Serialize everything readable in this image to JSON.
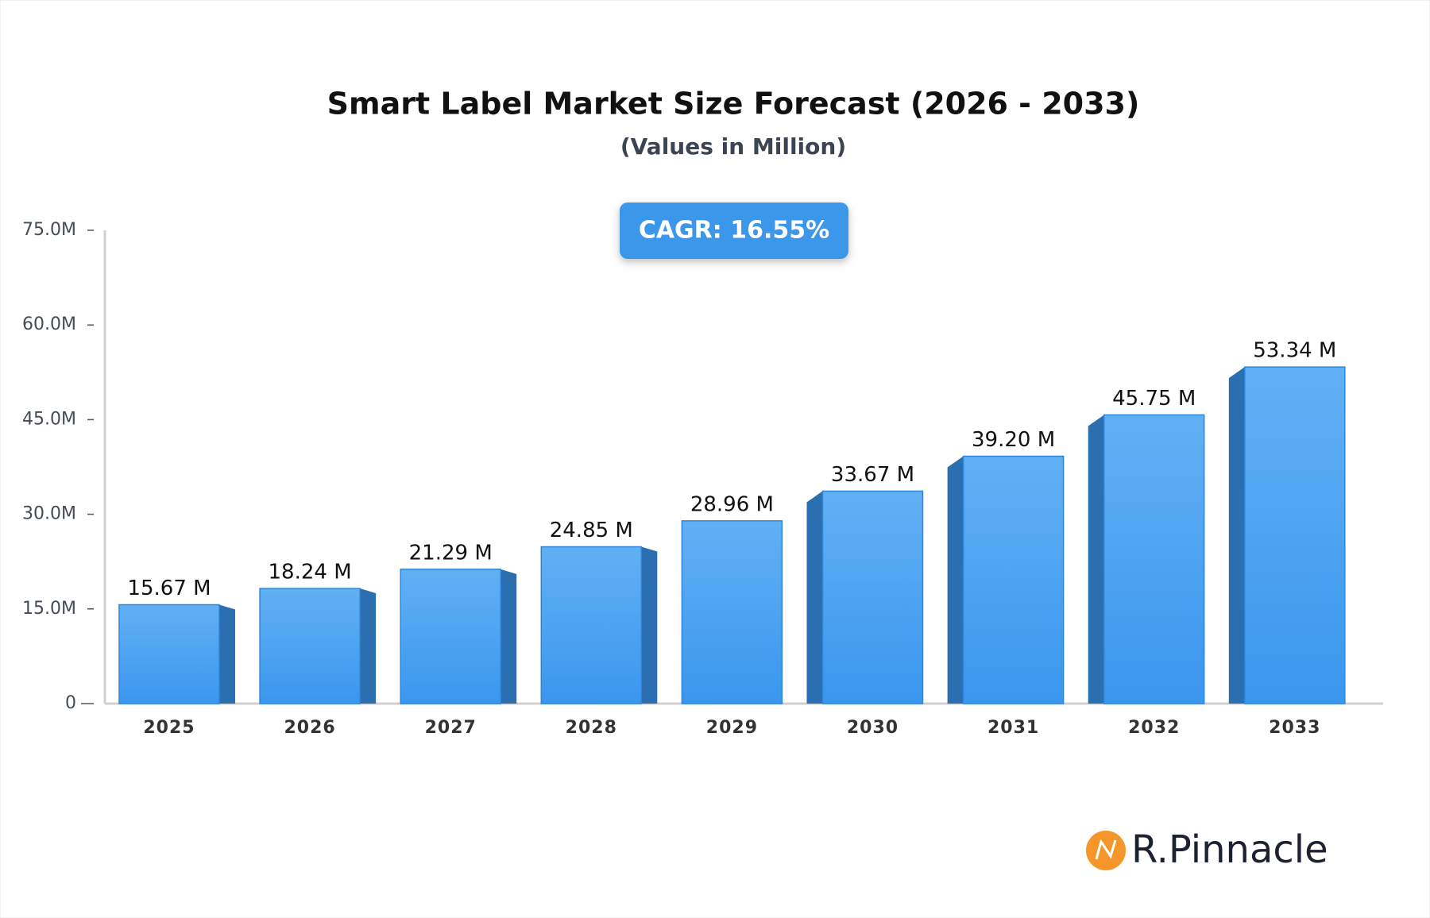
{
  "chart_data": {
    "type": "bar",
    "title": "Smart Label Market Size Forecast (2026 - 2033)",
    "subtitle": "(Values in Million)",
    "annotation": "CAGR: 16.55%",
    "brand": "R.Pinnacle",
    "categories": [
      "2025",
      "2026",
      "2027",
      "2028",
      "2029",
      "2030",
      "2031",
      "2032",
      "2033"
    ],
    "values": [
      15.67,
      18.24,
      21.29,
      24.85,
      28.96,
      33.67,
      39.2,
      45.75,
      53.34
    ],
    "value_labels": [
      "15.67 M",
      "18.24 M",
      "21.29 M",
      "24.85 M",
      "28.96 M",
      "33.67 M",
      "39.20 M",
      "45.75 M",
      "53.34 M"
    ],
    "color": "#4aa2f2",
    "ylim": [
      0,
      75
    ],
    "yticks": [
      0,
      {
        "value": 15,
        "label": "15.0M"
      },
      {
        "value": 30,
        "label": "30.0M"
      },
      {
        "value": 45,
        "label": "45.0M"
      },
      {
        "value": 60,
        "label": "60.0M"
      },
      {
        "value": 75,
        "label": "75.0M"
      }
    ]
  }
}
